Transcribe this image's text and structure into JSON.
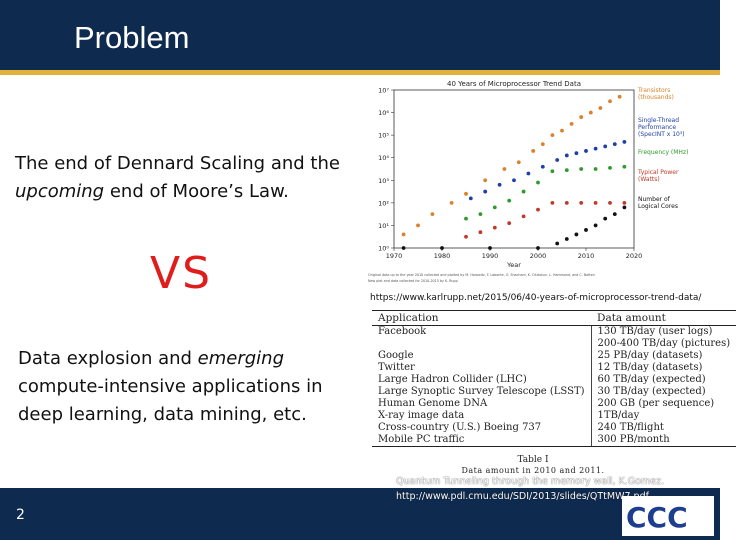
{
  "slide": {
    "title": "Problem",
    "page_number": "2",
    "colors": {
      "header": "#0e2a4f",
      "accent": "#e2b13c",
      "vs": "#e01d1d"
    }
  },
  "left": {
    "para1_pre": "The end of Dennard Scaling and the ",
    "para1_em": "upcoming",
    "para1_post": " end of Moore’s Law.",
    "vs": "VS",
    "para2_pre": "Data explosion and ",
    "para2_em": "emerging",
    "para2_post": " compute-intensive applications in deep learning, data mining, etc."
  },
  "chart_data": {
    "type": "scatter",
    "title": "40 Years of Microprocessor Trend Data",
    "xlabel": "Year",
    "ylabel": "",
    "x_ticks": [
      "1970",
      "1980",
      "1990",
      "2000",
      "2010",
      "2020"
    ],
    "y_ticks": [
      "10⁰",
      "10¹",
      "10²",
      "10³",
      "10⁴",
      "10⁵",
      "10⁶",
      "10⁷"
    ],
    "xlim": [
      1970,
      2020
    ],
    "ylim_log10": [
      0,
      7
    ],
    "legend": [
      "Transistors (thousands)",
      "Single-Thread Performance (SpecINT x 10³)",
      "Frequency (MHz)",
      "Typical Power (Watts)",
      "Number of Logical Cores"
    ],
    "series": [
      {
        "name": "Transistors (thousands)",
        "color": "#d9822b",
        "x": [
          1972,
          1975,
          1978,
          1982,
          1985,
          1989,
          1993,
          1996,
          1999,
          2001,
          2003,
          2005,
          2007,
          2009,
          2011,
          2013,
          2015,
          2017
        ],
        "values": [
          0.6,
          1.0,
          1.5,
          2.0,
          2.4,
          3.0,
          3.5,
          3.8,
          4.3,
          4.6,
          5.0,
          5.2,
          5.5,
          5.8,
          6.0,
          6.2,
          6.5,
          6.7
        ]
      },
      {
        "name": "Single-Thread Performance",
        "color": "#1f3fa6",
        "x": [
          1986,
          1989,
          1992,
          1995,
          1998,
          2001,
          2004,
          2006,
          2008,
          2010,
          2012,
          2014,
          2016,
          2018
        ],
        "values": [
          2.2,
          2.5,
          2.8,
          3.0,
          3.3,
          3.6,
          3.9,
          4.1,
          4.2,
          4.3,
          4.4,
          4.5,
          4.6,
          4.7
        ]
      },
      {
        "name": "Frequency (MHz)",
        "color": "#2e9a2e",
        "x": [
          1985,
          1988,
          1991,
          1994,
          1997,
          2000,
          2003,
          2006,
          2009,
          2012,
          2015,
          2018
        ],
        "values": [
          1.3,
          1.5,
          1.8,
          2.1,
          2.5,
          2.9,
          3.4,
          3.45,
          3.5,
          3.5,
          3.55,
          3.6
        ]
      },
      {
        "name": "Typical Power (Watts)",
        "color": "#c0392b",
        "x": [
          1985,
          1988,
          1991,
          1994,
          1997,
          2000,
          2003,
          2006,
          2009,
          2012,
          2015,
          2018
        ],
        "values": [
          0.5,
          0.7,
          0.9,
          1.1,
          1.4,
          1.7,
          2.0,
          2.0,
          2.0,
          2.0,
          2.0,
          2.0
        ]
      },
      {
        "name": "Number of Logical Cores",
        "color": "#111111",
        "x": [
          1972,
          1980,
          1990,
          2000,
          2004,
          2006,
          2008,
          2010,
          2012,
          2014,
          2016,
          2018
        ],
        "values": [
          0,
          0,
          0,
          0,
          0.2,
          0.4,
          0.6,
          0.8,
          1.0,
          1.3,
          1.5,
          1.8
        ]
      }
    ],
    "footnote_line1": "Original data up to the year 2010 collected and plotted by M. Horowitz, F. Labonte, O. Shacham, K. Olukotun, L. Hammond, and C. Batten",
    "footnote_line2": "New plot and data collected for 2010-2015 by K. Rupp"
  },
  "source_url": "https://www.karlrupp.net/2015/06/40-years-of-microprocessor-trend-data/",
  "table": {
    "headers": [
      "Application",
      "Data amount"
    ],
    "rows": [
      [
        "Facebook",
        "130 TB/day (user logs)"
      ],
      [
        "",
        "200-400 TB/day (pictures)"
      ],
      [
        "Google",
        "25 PB/day (datasets)"
      ],
      [
        "Twitter",
        "12 TB/day (datasets)"
      ],
      [
        "Large Hadron Collider (LHC)",
        "60 TB/day (expected)"
      ],
      [
        "Large Synoptic Survey Telescope (LSST)",
        "30 TB/day (expected)"
      ],
      [
        "Human Genome DNA",
        "200 GB (per sequence)"
      ],
      [
        "X-ray image data",
        "1TB/day"
      ],
      [
        "Cross-country (U.S.) Boeing 737",
        "240 TB/flight"
      ],
      [
        "Mobile PC traffic",
        "300 PB/month"
      ]
    ],
    "caption1": "Table I",
    "caption2": "Data amount in 2010 and 2011."
  },
  "citation": {
    "line1": "Quantum Tunneling through the memory wall, K.Gomez.",
    "line2": "http://www.pdl.cmu.edu/SDI/2013/slides/QTtMW7.pdf"
  },
  "logo": {
    "text": "CCC"
  }
}
